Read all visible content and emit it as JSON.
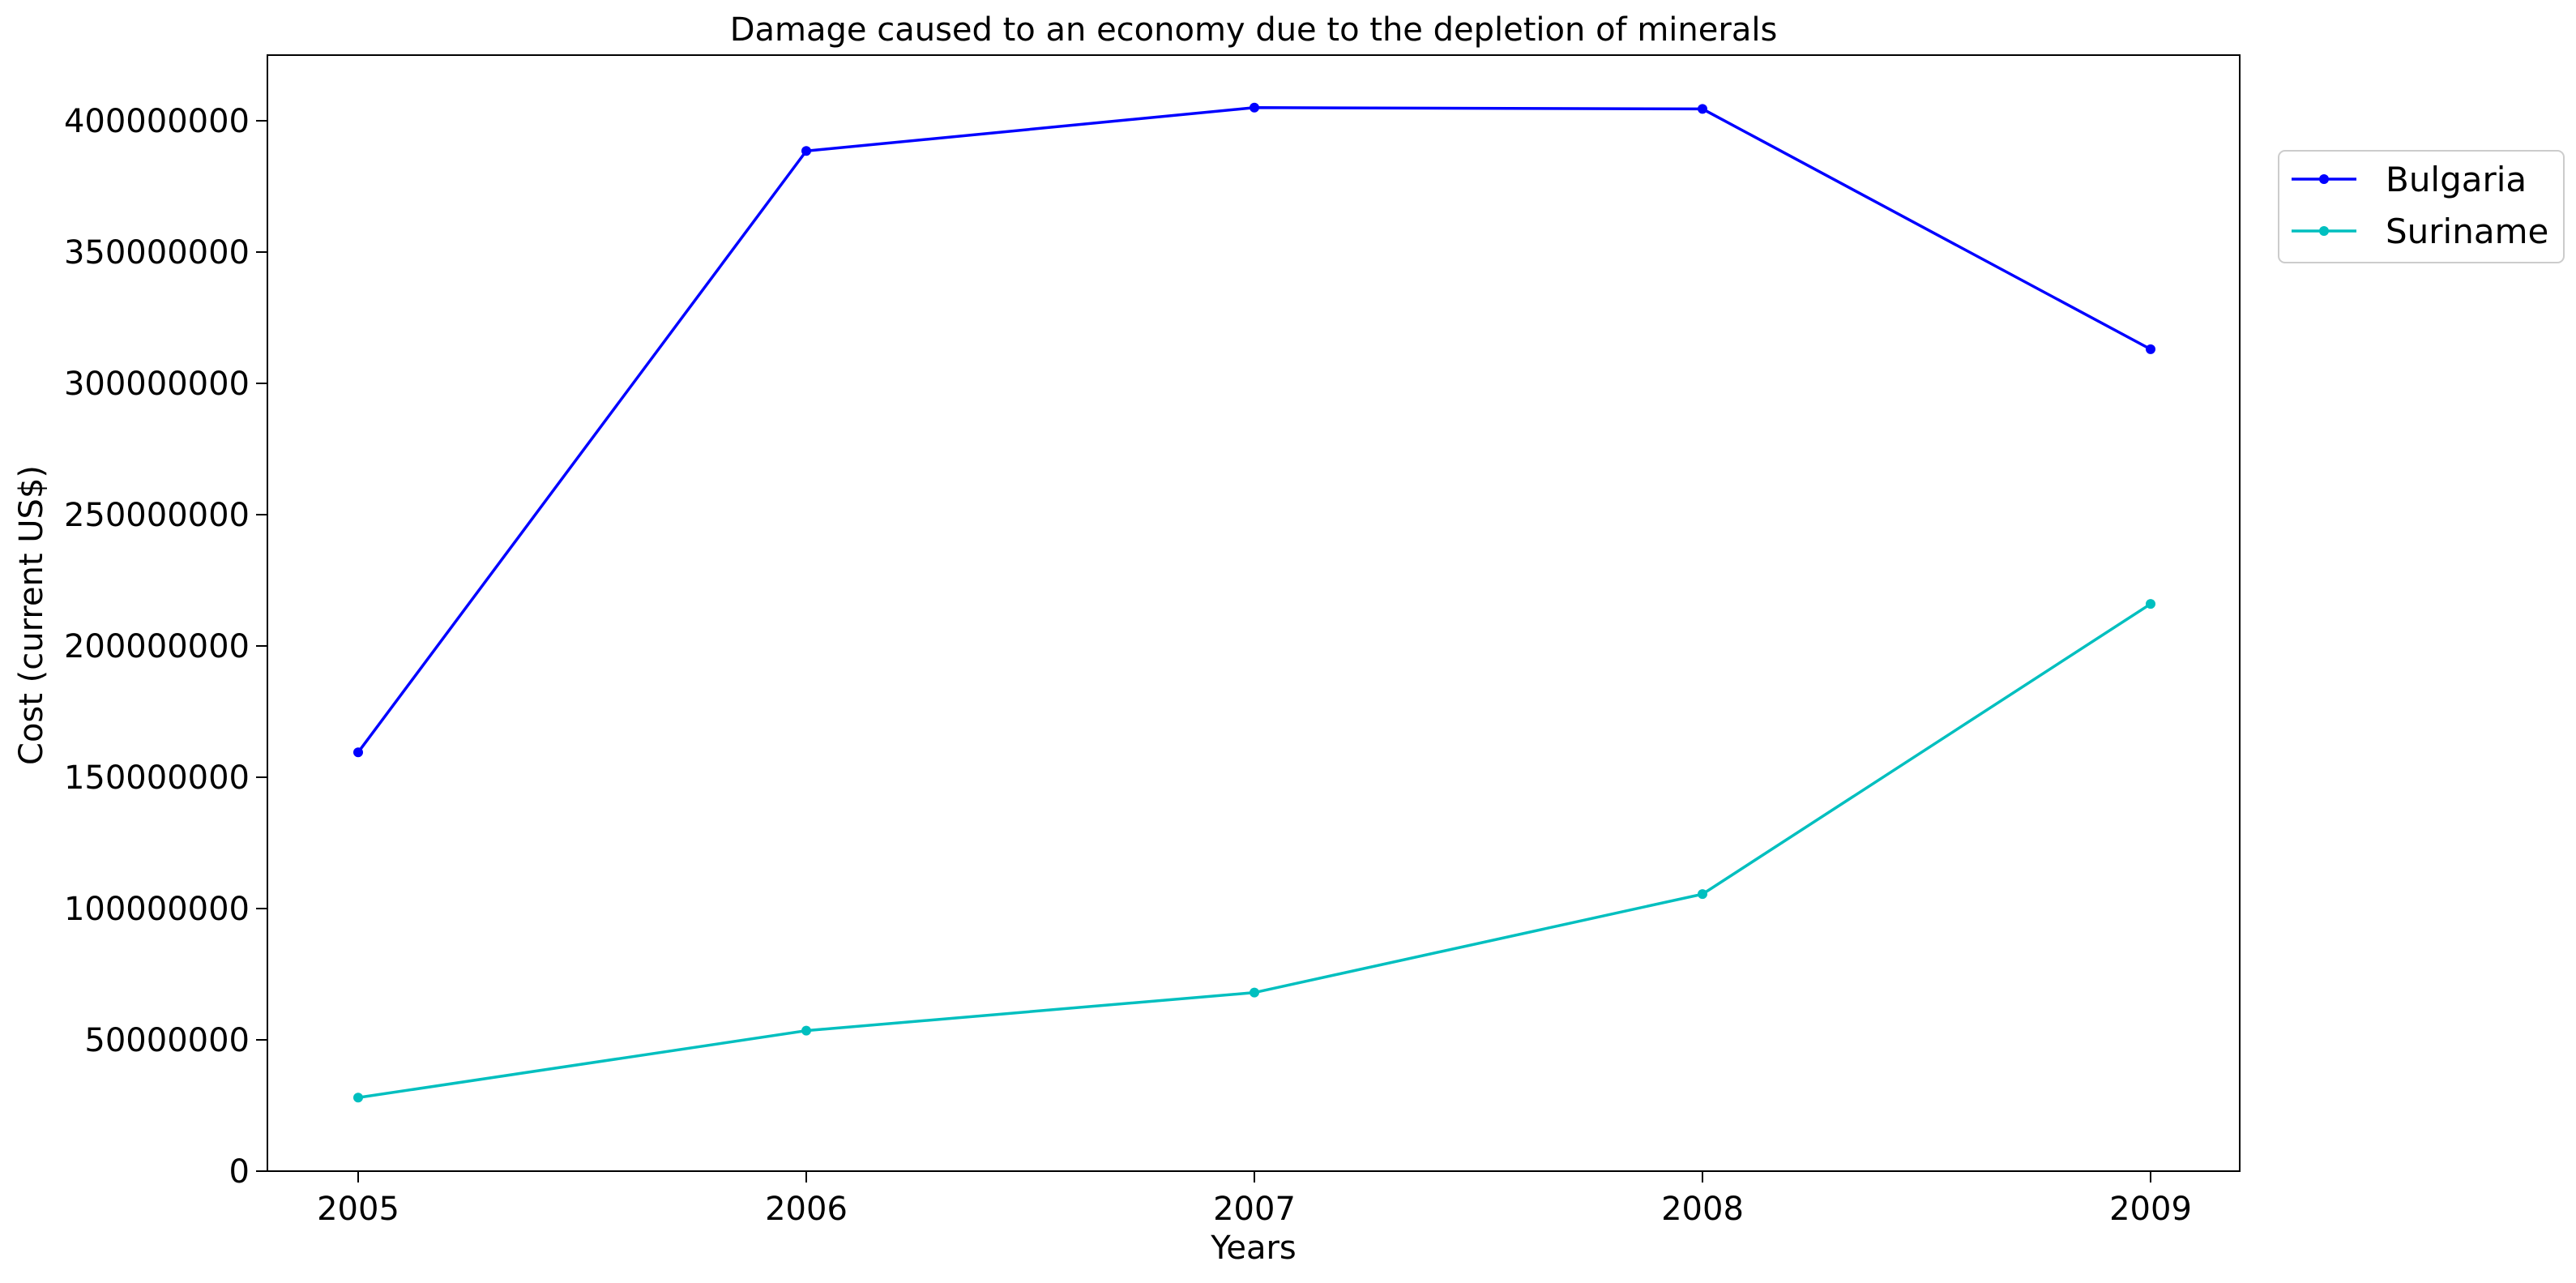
{
  "chart_data": {
    "type": "line",
    "title": "Damage caused to an economy due to the depletion of minerals",
    "xlabel": "Years",
    "ylabel": "Cost (current US$)",
    "x": [
      "2005",
      "2006",
      "2007",
      "2008",
      "2009"
    ],
    "ylim": [
      0,
      425000000
    ],
    "yticks": [
      0,
      50000000,
      100000000,
      150000000,
      200000000,
      250000000,
      300000000,
      350000000,
      400000000
    ],
    "ytick_labels": [
      "0",
      "50000000",
      "100000000",
      "150000000",
      "200000000",
      "250000000",
      "300000000",
      "350000000",
      "400000000"
    ],
    "grid": false,
    "legend_position": "outside-top-right",
    "series": [
      {
        "name": "Bulgaria",
        "color": "#0000ff",
        "values": [
          159500000,
          388500000,
          405000000,
          404500000,
          313000000
        ]
      },
      {
        "name": "Suriname",
        "color": "#00bfbf",
        "values": [
          28000000,
          53500000,
          68000000,
          105500000,
          216000000
        ]
      }
    ]
  }
}
